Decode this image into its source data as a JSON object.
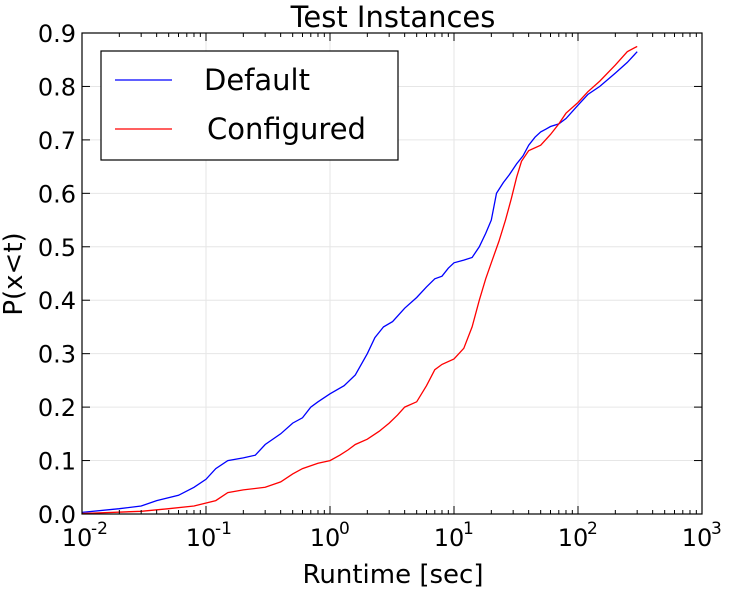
{
  "chart_data": {
    "type": "line",
    "title": "Test Instances",
    "xlabel": "Runtime [sec]",
    "ylabel": "P(x<t)",
    "x_scale": "log",
    "xlim": [
      0.01,
      1000
    ],
    "ylim": [
      0,
      0.9
    ],
    "grid": true,
    "legend_position": "top-left",
    "x_ticks": [
      {
        "base": "10",
        "exp": "-2",
        "value": 0.01
      },
      {
        "base": "10",
        "exp": "-1",
        "value": 0.1
      },
      {
        "base": "10",
        "exp": "0",
        "value": 1
      },
      {
        "base": "10",
        "exp": "1",
        "value": 10
      },
      {
        "base": "10",
        "exp": "2",
        "value": 100
      },
      {
        "base": "10",
        "exp": "3",
        "value": 1000
      }
    ],
    "y_ticks": [
      "0.0",
      "0.1",
      "0.2",
      "0.3",
      "0.4",
      "0.5",
      "0.6",
      "0.7",
      "0.8",
      "0.9"
    ],
    "series": [
      {
        "name": "Default",
        "color": "#0000ff",
        "points": [
          [
            0.01,
            0.003
          ],
          [
            0.02,
            0.01
          ],
          [
            0.03,
            0.015
          ],
          [
            0.04,
            0.025
          ],
          [
            0.06,
            0.035
          ],
          [
            0.08,
            0.05
          ],
          [
            0.1,
            0.065
          ],
          [
            0.12,
            0.085
          ],
          [
            0.15,
            0.1
          ],
          [
            0.2,
            0.105
          ],
          [
            0.25,
            0.11
          ],
          [
            0.3,
            0.13
          ],
          [
            0.4,
            0.15
          ],
          [
            0.5,
            0.17
          ],
          [
            0.6,
            0.18
          ],
          [
            0.7,
            0.2
          ],
          [
            0.8,
            0.21
          ],
          [
            1.0,
            0.225
          ],
          [
            1.3,
            0.24
          ],
          [
            1.6,
            0.26
          ],
          [
            2.0,
            0.3
          ],
          [
            2.3,
            0.33
          ],
          [
            2.7,
            0.35
          ],
          [
            3.2,
            0.36
          ],
          [
            4.0,
            0.385
          ],
          [
            5.0,
            0.405
          ],
          [
            6.0,
            0.425
          ],
          [
            7.0,
            0.44
          ],
          [
            8.0,
            0.445
          ],
          [
            9.0,
            0.46
          ],
          [
            10.0,
            0.47
          ],
          [
            12.0,
            0.475
          ],
          [
            14.0,
            0.48
          ],
          [
            16.0,
            0.5
          ],
          [
            18.0,
            0.525
          ],
          [
            20.0,
            0.55
          ],
          [
            22.0,
            0.6
          ],
          [
            25.0,
            0.62
          ],
          [
            28.0,
            0.635
          ],
          [
            32.0,
            0.655
          ],
          [
            36.0,
            0.67
          ],
          [
            40.0,
            0.69
          ],
          [
            45.0,
            0.705
          ],
          [
            50.0,
            0.715
          ],
          [
            55.0,
            0.72
          ],
          [
            60.0,
            0.725
          ],
          [
            70.0,
            0.73
          ],
          [
            80.0,
            0.74
          ],
          [
            100.0,
            0.765
          ],
          [
            120.0,
            0.785
          ],
          [
            150.0,
            0.8
          ],
          [
            200.0,
            0.825
          ],
          [
            250.0,
            0.845
          ],
          [
            300.0,
            0.865
          ]
        ]
      },
      {
        "name": "Configured",
        "color": "#ff0000",
        "points": [
          [
            0.01,
            0.001
          ],
          [
            0.03,
            0.005
          ],
          [
            0.05,
            0.01
          ],
          [
            0.08,
            0.015
          ],
          [
            0.12,
            0.025
          ],
          [
            0.15,
            0.04
          ],
          [
            0.2,
            0.045
          ],
          [
            0.3,
            0.05
          ],
          [
            0.4,
            0.06
          ],
          [
            0.5,
            0.075
          ],
          [
            0.6,
            0.085
          ],
          [
            0.8,
            0.095
          ],
          [
            1.0,
            0.1
          ],
          [
            1.2,
            0.11
          ],
          [
            1.4,
            0.12
          ],
          [
            1.6,
            0.13
          ],
          [
            2.0,
            0.14
          ],
          [
            2.5,
            0.155
          ],
          [
            3.0,
            0.17
          ],
          [
            3.5,
            0.185
          ],
          [
            4.0,
            0.2
          ],
          [
            5.0,
            0.21
          ],
          [
            6.0,
            0.24
          ],
          [
            7.0,
            0.27
          ],
          [
            8.0,
            0.28
          ],
          [
            10.0,
            0.29
          ],
          [
            12.0,
            0.31
          ],
          [
            14.0,
            0.35
          ],
          [
            16.0,
            0.4
          ],
          [
            18.0,
            0.44
          ],
          [
            20.0,
            0.47
          ],
          [
            23.0,
            0.51
          ],
          [
            26.0,
            0.55
          ],
          [
            29.0,
            0.59
          ],
          [
            32.0,
            0.63
          ],
          [
            35.0,
            0.66
          ],
          [
            40.0,
            0.68
          ],
          [
            50.0,
            0.69
          ],
          [
            60.0,
            0.71
          ],
          [
            70.0,
            0.73
          ],
          [
            80.0,
            0.75
          ],
          [
            100.0,
            0.77
          ],
          [
            120.0,
            0.79
          ],
          [
            150.0,
            0.81
          ],
          [
            200.0,
            0.84
          ],
          [
            250.0,
            0.865
          ],
          [
            300.0,
            0.875
          ]
        ]
      }
    ]
  }
}
